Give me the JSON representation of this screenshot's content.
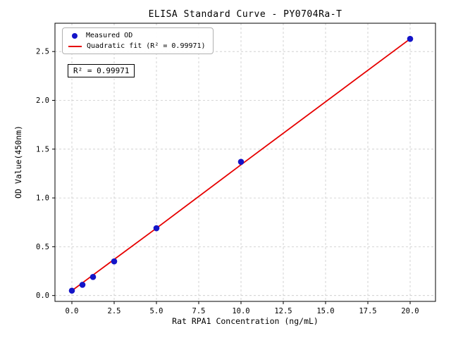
{
  "figure": {
    "background": "#ffffff"
  },
  "chart_data": {
    "type": "scatter",
    "title": "ELISA Standard Curve - PY0704Ra-T",
    "xlabel": "Rat RPA1 Concentration (ng/mL)",
    "ylabel": "OD Value(450nm)",
    "xlim": [
      -1,
      21.5
    ],
    "ylim": [
      -0.06,
      2.79
    ],
    "xticks": [
      0.0,
      2.5,
      5.0,
      7.5,
      10.0,
      12.5,
      15.0,
      17.5,
      20.0
    ],
    "xtick_labels": [
      "0.0",
      "2.5",
      "5.0",
      "7.5",
      "10.0",
      "12.5",
      "15.0",
      "17.5",
      "20.0"
    ],
    "yticks": [
      0.0,
      0.5,
      1.0,
      1.5,
      2.0,
      2.5
    ],
    "ytick_labels": [
      "0.0",
      "0.5",
      "1.0",
      "1.5",
      "2.0",
      "2.5"
    ],
    "grid": true,
    "grid_style": "dashed",
    "grid_color": "#c9c9c9",
    "legend_position": "upper-left",
    "annotation": "R² = 0.99971",
    "series": [
      {
        "name": "Measured OD",
        "type": "scatter",
        "color": "#1414c8",
        "x": [
          0,
          0.625,
          1.25,
          2.5,
          5,
          10,
          20
        ],
        "y": [
          0.05,
          0.11,
          0.19,
          0.35,
          0.69,
          1.37,
          2.63
        ]
      },
      {
        "name": "Quadratic fit (R² = 0.99971)",
        "type": "line",
        "color": "#e60000",
        "x": [
          0,
          0.625,
          1.25,
          2.5,
          5,
          10,
          20
        ],
        "y": [
          0.05,
          0.13,
          0.21,
          0.37,
          0.69,
          1.34,
          2.63
        ]
      }
    ]
  }
}
